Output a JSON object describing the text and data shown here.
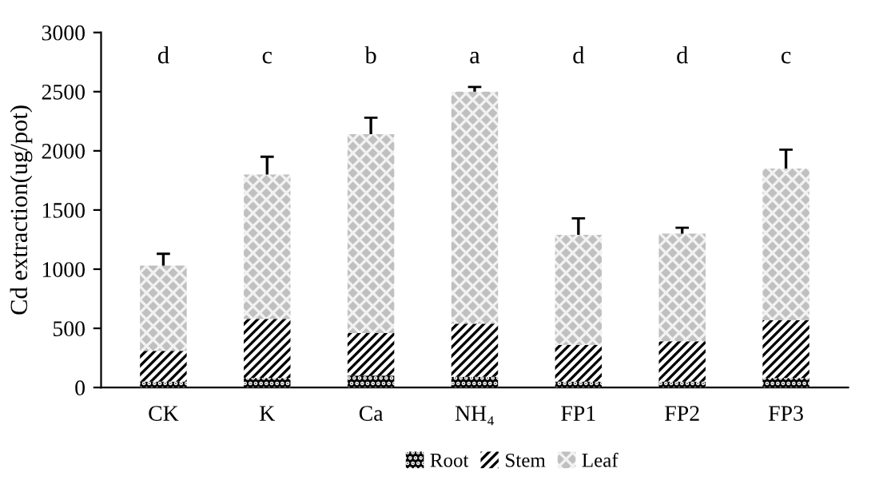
{
  "chart_data": {
    "type": "bar",
    "stacked": true,
    "ylabel": "Cd extraction(ug/pot)",
    "categories": [
      "CK",
      "K",
      "Ca",
      "NH₄",
      "FP1",
      "FP2",
      "FP3"
    ],
    "series": [
      {
        "name": "Root",
        "color": "#000000",
        "values": [
          50,
          80,
          100,
          90,
          50,
          50,
          80
        ]
      },
      {
        "name": "Stem",
        "color": "#000000",
        "values": [
          260,
          500,
          360,
          450,
          310,
          340,
          490
        ]
      },
      {
        "name": "Leaf",
        "color": "#c0c0c0",
        "values": [
          720,
          1220,
          1680,
          1960,
          930,
          910,
          1280
        ],
        "errors": [
          100,
          150,
          140,
          40,
          140,
          50,
          160
        ]
      }
    ],
    "ylim": [
      0,
      3000
    ],
    "yticks": [
      0,
      500,
      1000,
      1500,
      2000,
      2500,
      3000
    ],
    "grid": false,
    "legend": "bottom",
    "annotations": [
      "d",
      "c",
      "b",
      "a",
      "d",
      "d",
      "c"
    ]
  }
}
